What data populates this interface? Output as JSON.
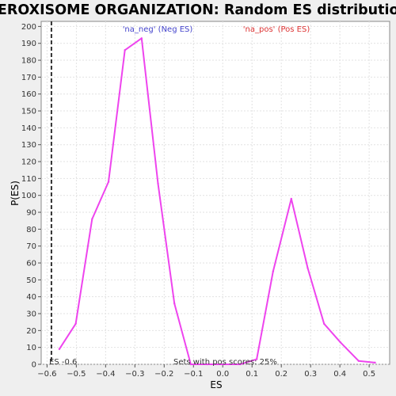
{
  "chart_data": {
    "type": "line",
    "title": "PEROXISOME ORGANIZATION: Random ES distribution",
    "xlabel": "ES",
    "ylabel": "P(ES)",
    "xlim": [
      -0.62,
      0.57
    ],
    "ylim": [
      0,
      203
    ],
    "xticks": [
      -0.6,
      -0.5,
      -0.4,
      -0.3,
      -0.2,
      -0.1,
      0.0,
      0.1,
      0.2,
      0.3,
      0.4,
      0.5
    ],
    "xtick_labels": [
      "−0.6",
      "−0.5",
      "−0.4",
      "−0.3",
      "−0.2",
      "−0.1",
      "0.0",
      "0.1",
      "0.2",
      "0.3",
      "0.4",
      "0.5"
    ],
    "yticks": [
      0,
      10,
      20,
      30,
      40,
      50,
      60,
      70,
      80,
      90,
      100,
      110,
      120,
      130,
      140,
      150,
      160,
      170,
      180,
      190,
      200
    ],
    "grid": true,
    "series": [
      {
        "color": "#ee44ee",
        "x": [
          -0.558,
          -0.502,
          -0.446,
          -0.39,
          -0.334,
          -0.277,
          -0.221,
          -0.165,
          -0.109,
          -0.053,
          0.003,
          0.059,
          0.116,
          0.172,
          0.234,
          0.29,
          0.346,
          0.402,
          0.464,
          0.52
        ],
        "y": [
          9,
          24,
          86,
          108,
          186,
          193,
          107,
          36,
          0,
          0,
          0,
          0,
          3,
          55,
          98,
          57,
          24,
          13,
          2,
          1
        ]
      }
    ],
    "vline": {
      "x": -0.585,
      "label": "ES -0.6"
    },
    "annotations": {
      "neg_label": "'na_neg' (Neg ES)",
      "neg_color": "#4444cc",
      "pos_label": "'na_pos' (Pos ES)",
      "pos_color": "#dd3333",
      "sets_label": "Sets with pos scores: 25%"
    }
  }
}
